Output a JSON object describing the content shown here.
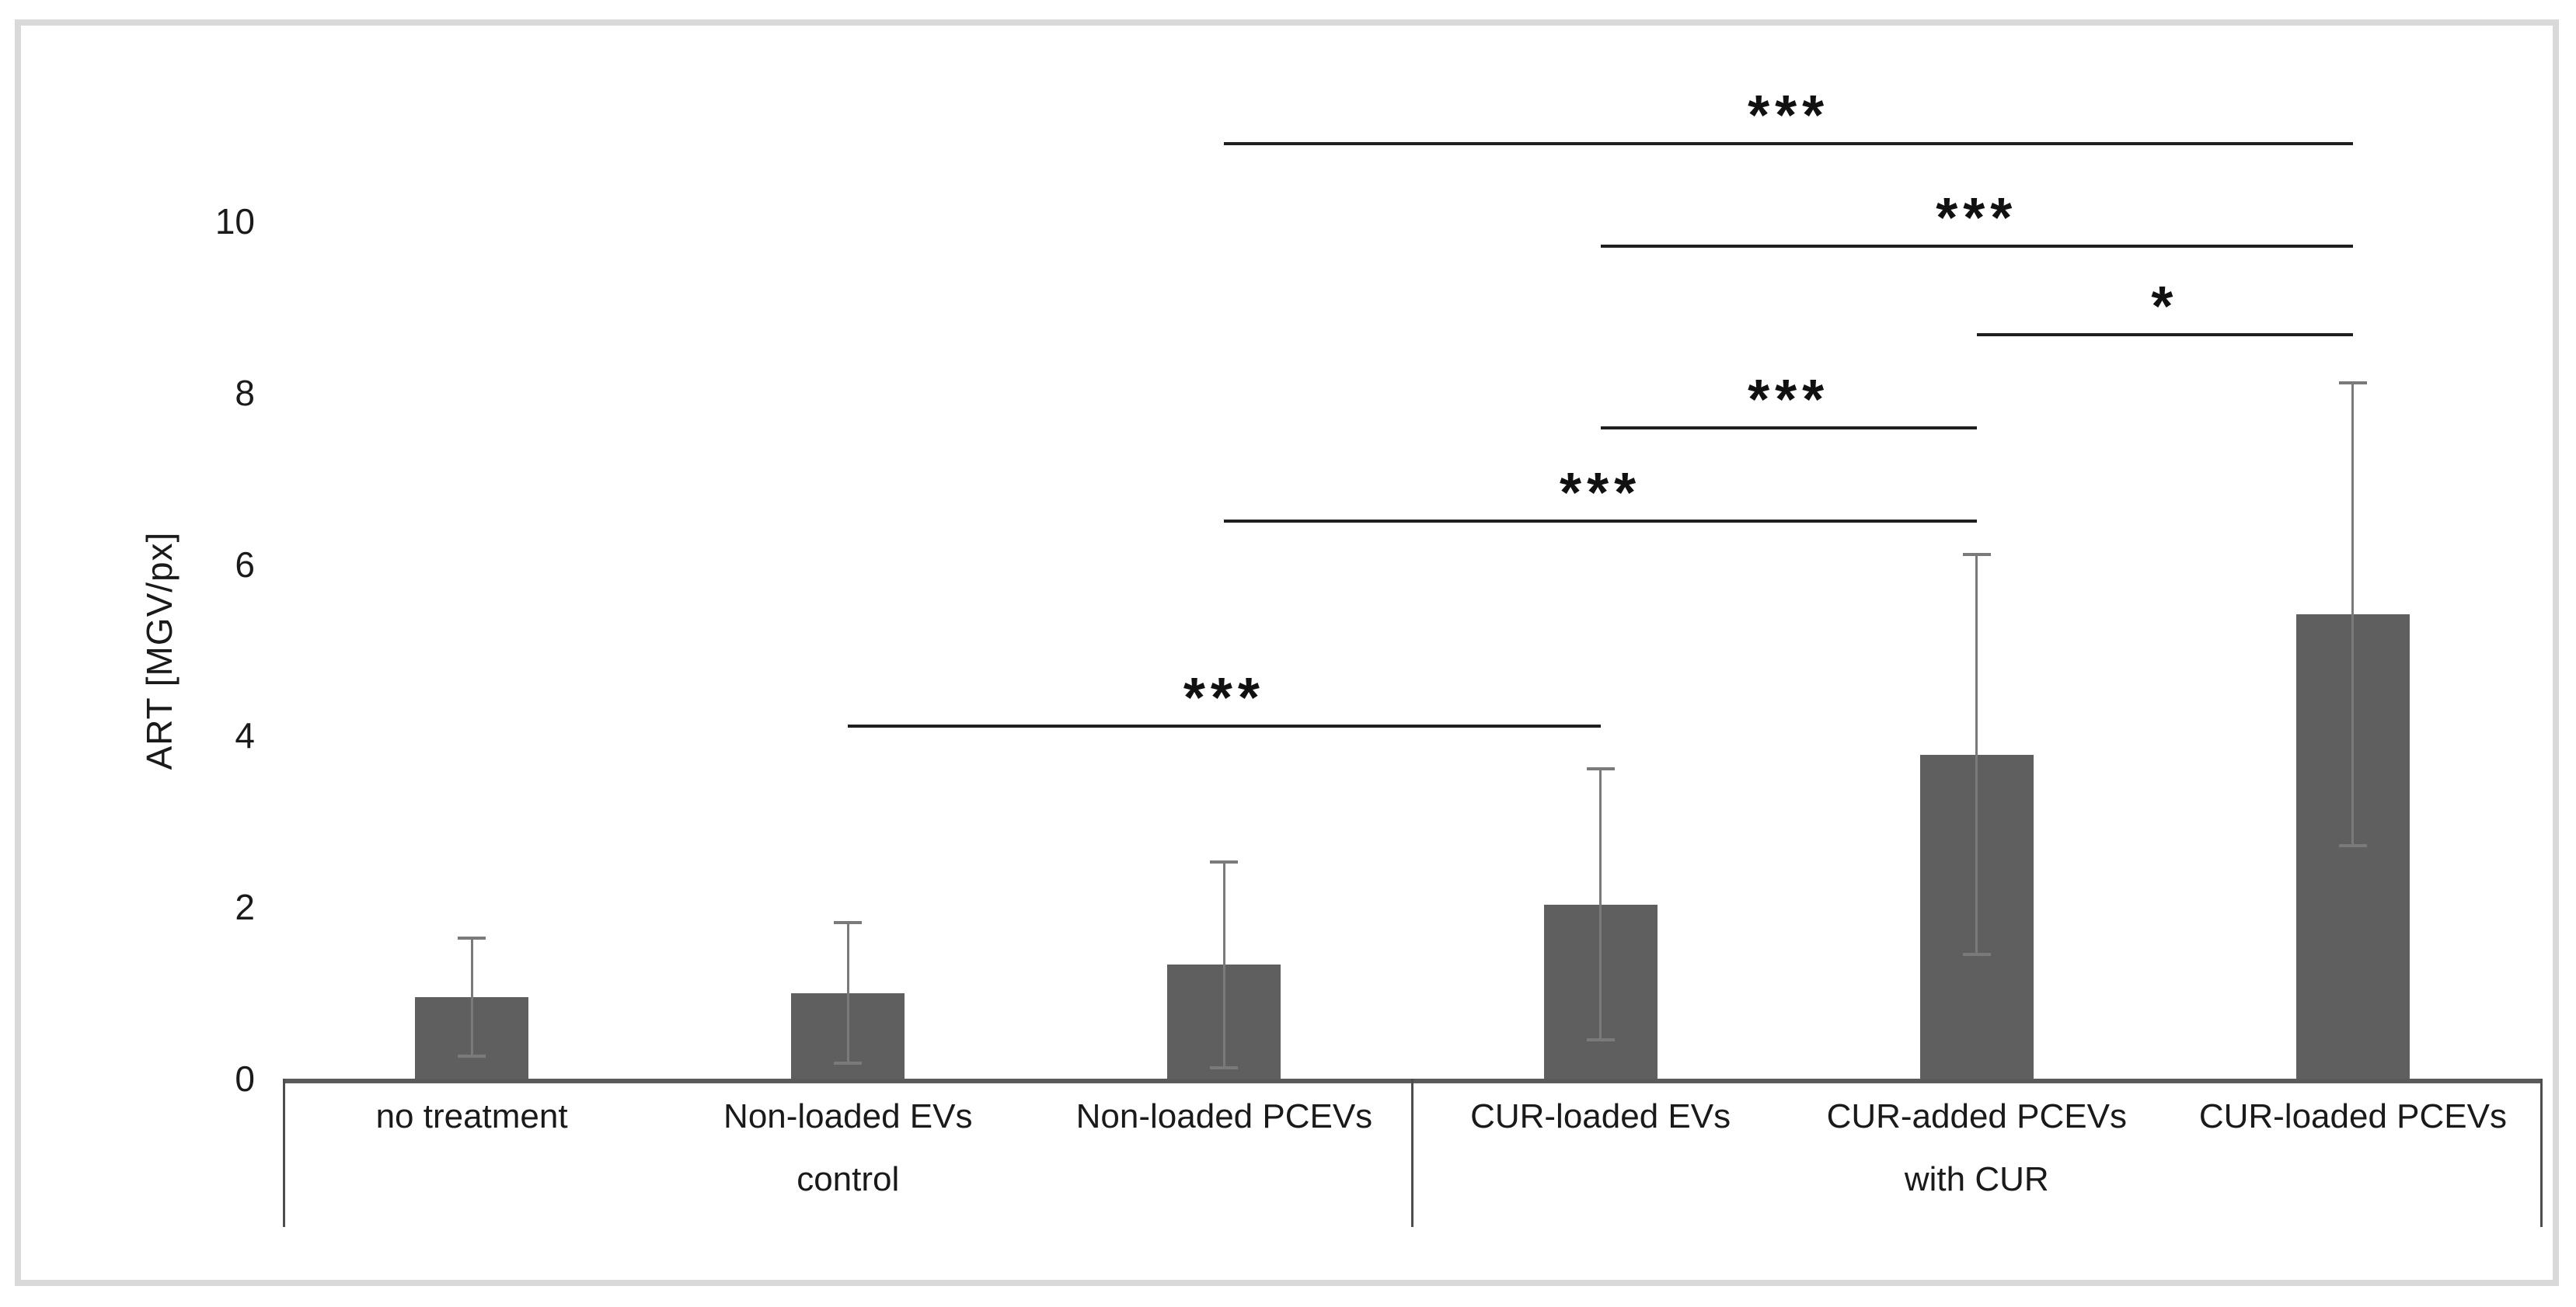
{
  "figure": {
    "background": "#ffffff",
    "border_color": "#d9d9d9"
  },
  "chart_data": {
    "type": "bar",
    "title": "",
    "ylabel": "ART [MGV/px]",
    "xlabel": "",
    "ylim": [
      0,
      10
    ],
    "yticks": [
      10,
      8,
      6,
      4,
      2,
      0
    ],
    "grid": false,
    "legend": false,
    "bar_color": "#5f5f5f",
    "error_color": "#7a7a7a",
    "categories": [
      "no treatment",
      "Non-loaded EVs",
      "Non-loaded PCEVs",
      "CUR-loaded EVs",
      "CUR-added PCEVs",
      "CUR-loaded PCEVs"
    ],
    "values": [
      0.95,
      1.0,
      1.33,
      2.03,
      3.78,
      5.42
    ],
    "error_sd": [
      0.69,
      0.82,
      1.2,
      1.58,
      2.33,
      2.7
    ],
    "groups": [
      {
        "label": "control",
        "span": [
          0,
          3
        ]
      },
      {
        "label": "with CUR",
        "span": [
          3,
          6
        ]
      }
    ],
    "significance": [
      {
        "from": 1,
        "to": 3,
        "label": "***",
        "line_y": 4.13
      },
      {
        "from": 2,
        "to": 4,
        "label": "***",
        "line_y": 6.52
      },
      {
        "from": 3,
        "to": 4,
        "label": "***",
        "line_y": 7.61
      },
      {
        "from": 4,
        "to": 5,
        "label": "*",
        "line_y": 8.7
      },
      {
        "from": 3,
        "to": 5,
        "label": "***",
        "line_y": 9.73
      },
      {
        "from": 2,
        "to": 5,
        "label": "***",
        "line_y": 10.92
      }
    ]
  }
}
